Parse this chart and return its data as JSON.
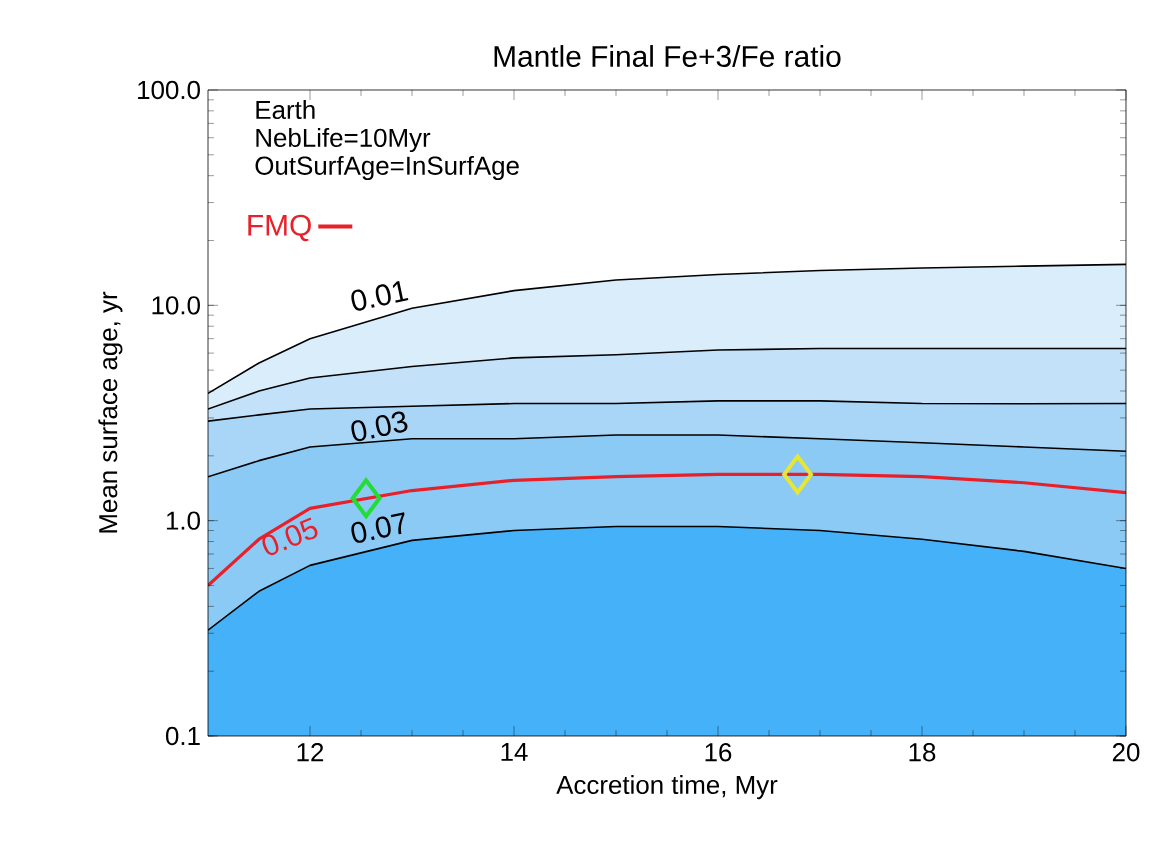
{
  "chart_data": {
    "type": "line",
    "title": "Mantle Final Fe+3/Fe ratio",
    "xlabel": "Accretion time, Myr",
    "ylabel": "Mean surface age, yr",
    "annotations": [
      "Earth",
      "NebLife=10Myr",
      "OutSurfAge=InSurfAge",
      {
        "text": "0.05",
        "x": 12,
        "y": 1.14
      }
    ],
    "x": [
      11,
      11.5,
      12,
      13,
      14,
      15,
      16,
      17,
      18,
      19,
      20
    ],
    "series": [
      {
        "name": "0.01",
        "type": "area",
        "color": "#d9edfb",
        "values": [
          3.9,
          5.4,
          7.0,
          9.7,
          11.7,
          13.1,
          13.9,
          14.5,
          14.9,
          15.2,
          15.5
        ]
      },
      {
        "type": "area",
        "color": "#c3e2f9",
        "values": [
          3.3,
          4.0,
          4.6,
          5.2,
          5.7,
          5.9,
          6.2,
          6.3,
          6.3,
          6.3,
          6.3
        ]
      },
      {
        "type": "area",
        "color": "#a9d6f7",
        "values": [
          2.9,
          3.1,
          3.3,
          3.4,
          3.5,
          3.5,
          3.6,
          3.6,
          3.5,
          3.49,
          3.5
        ]
      },
      {
        "name": "0.03",
        "type": "area",
        "color": "#8ccaf6",
        "values": [
          1.6,
          1.9,
          2.2,
          2.4,
          2.4,
          2.5,
          2.5,
          2.4,
          2.3,
          2.2,
          2.1
        ]
      },
      {
        "name": "0.07",
        "type": "area",
        "color": "#45b1f8",
        "values": [
          0.31,
          0.47,
          0.62,
          0.81,
          0.9,
          0.94,
          0.94,
          0.9,
          0.82,
          0.72,
          0.6
        ]
      },
      {
        "name": "FMQ",
        "color": "#e8202a",
        "values": [
          0.5,
          0.82,
          1.14,
          1.38,
          1.54,
          1.6,
          1.64,
          1.64,
          1.6,
          1.5,
          1.35
        ]
      },
      {
        "type": "scatter",
        "marker": "diamond",
        "x": [
          12.55,
          16.78
        ],
        "colors": [
          "#22dd33",
          "#e6e633"
        ],
        "values": [
          1.27,
          1.64
        ]
      }
    ],
    "log": "y",
    "legend": "top left",
    "xlim": [
      11,
      20
    ],
    "ylim": [
      0.1,
      100
    ],
    "xticks": [
      12,
      14,
      16,
      18,
      20
    ],
    "yticks": [
      {
        "value": 0.1,
        "label": "0.1"
      },
      {
        "value": 1,
        "label": "1.0"
      },
      {
        "value": 10,
        "label": "10.0"
      },
      {
        "value": 100,
        "label": "100.0"
      }
    ]
  }
}
